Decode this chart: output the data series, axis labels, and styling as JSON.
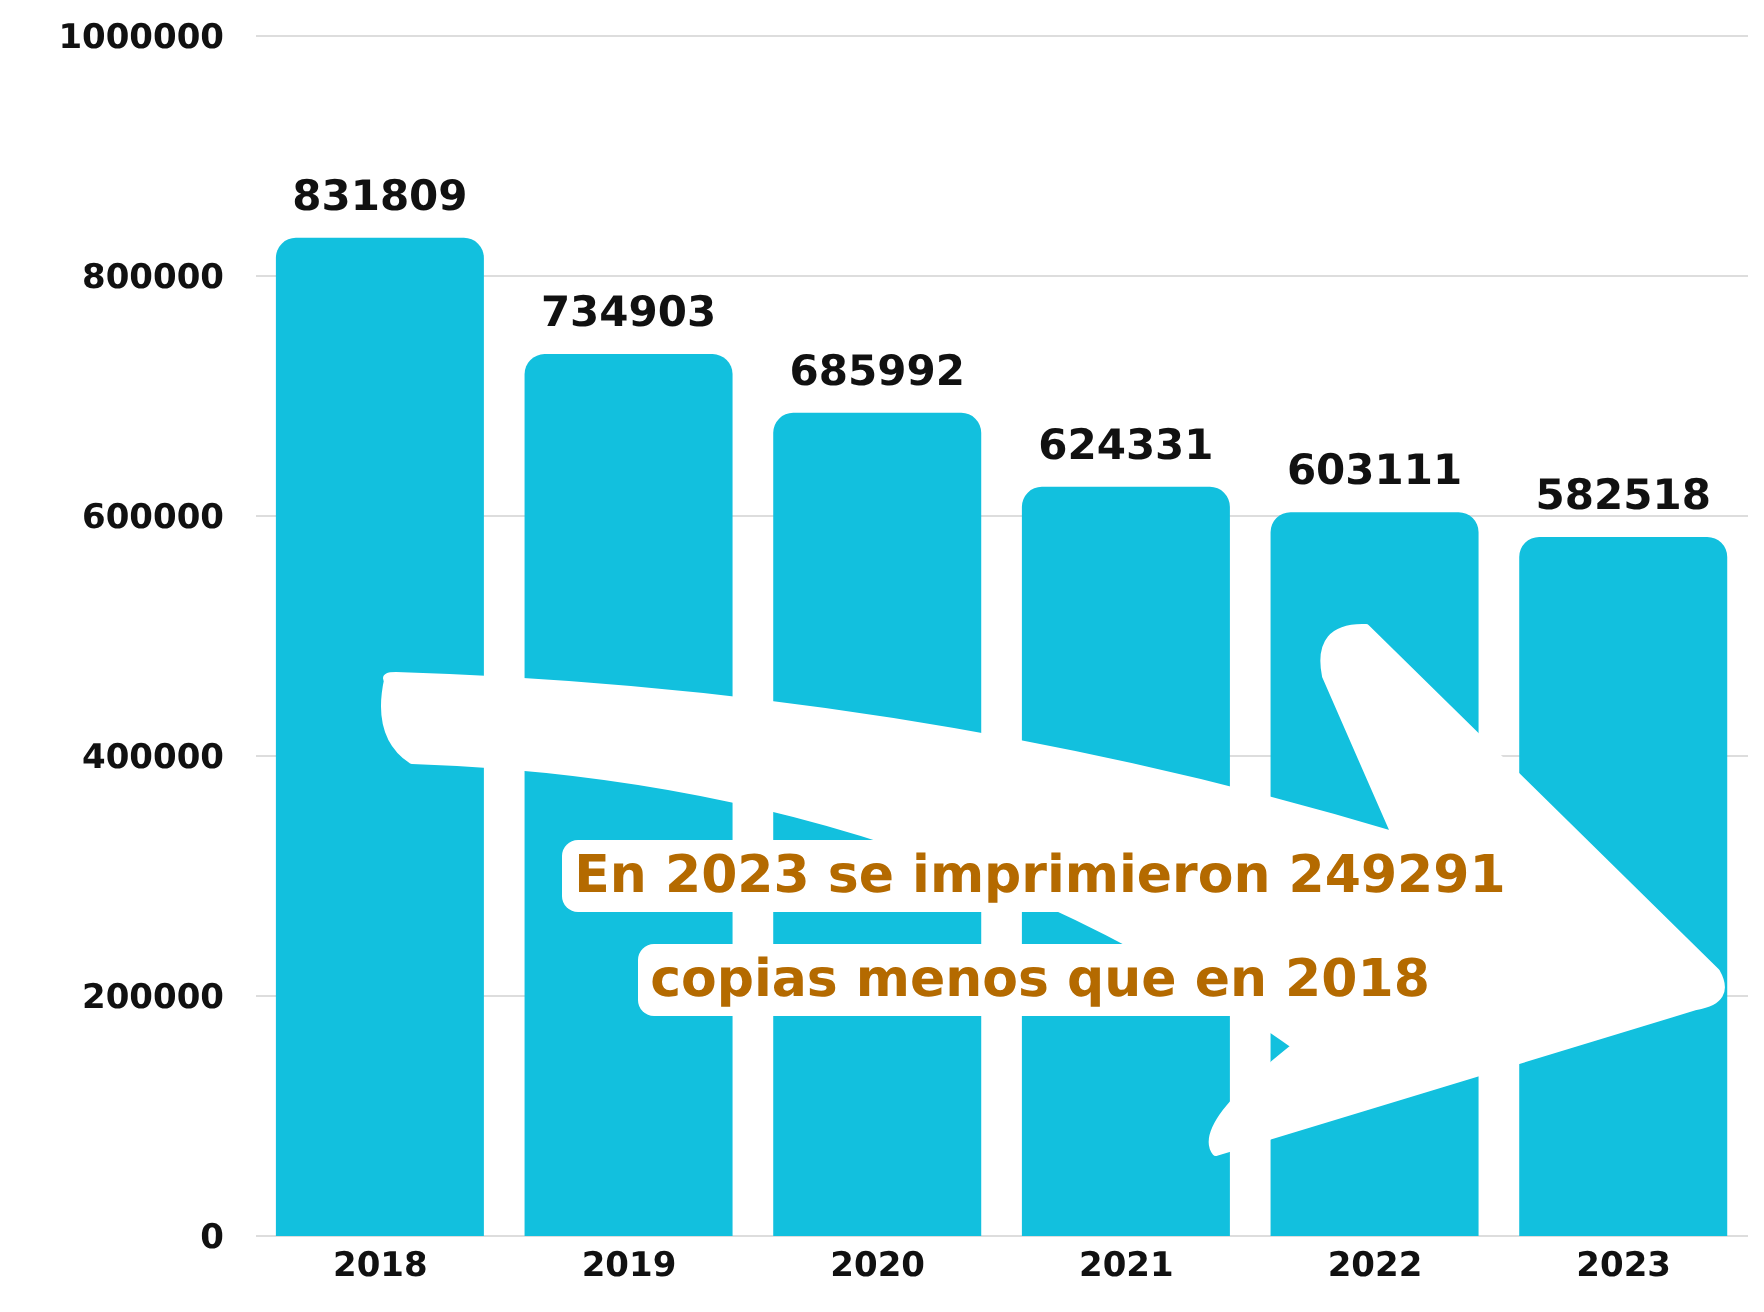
{
  "chart_data": {
    "type": "bar",
    "categories": [
      "2018",
      "2019",
      "2020",
      "2021",
      "2022",
      "2023"
    ],
    "values": [
      831809,
      734903,
      685992,
      624331,
      603111,
      582518
    ],
    "color": "#12c0de",
    "data_labels": true,
    "grid": "y",
    "ylim": [
      0,
      1000000
    ],
    "yticks": [
      0,
      200000,
      400000,
      600000,
      800000,
      1000000
    ],
    "annotations": [
      "En 2023 se imprimieron 249291 copias menos que en 2018"
    ]
  }
}
